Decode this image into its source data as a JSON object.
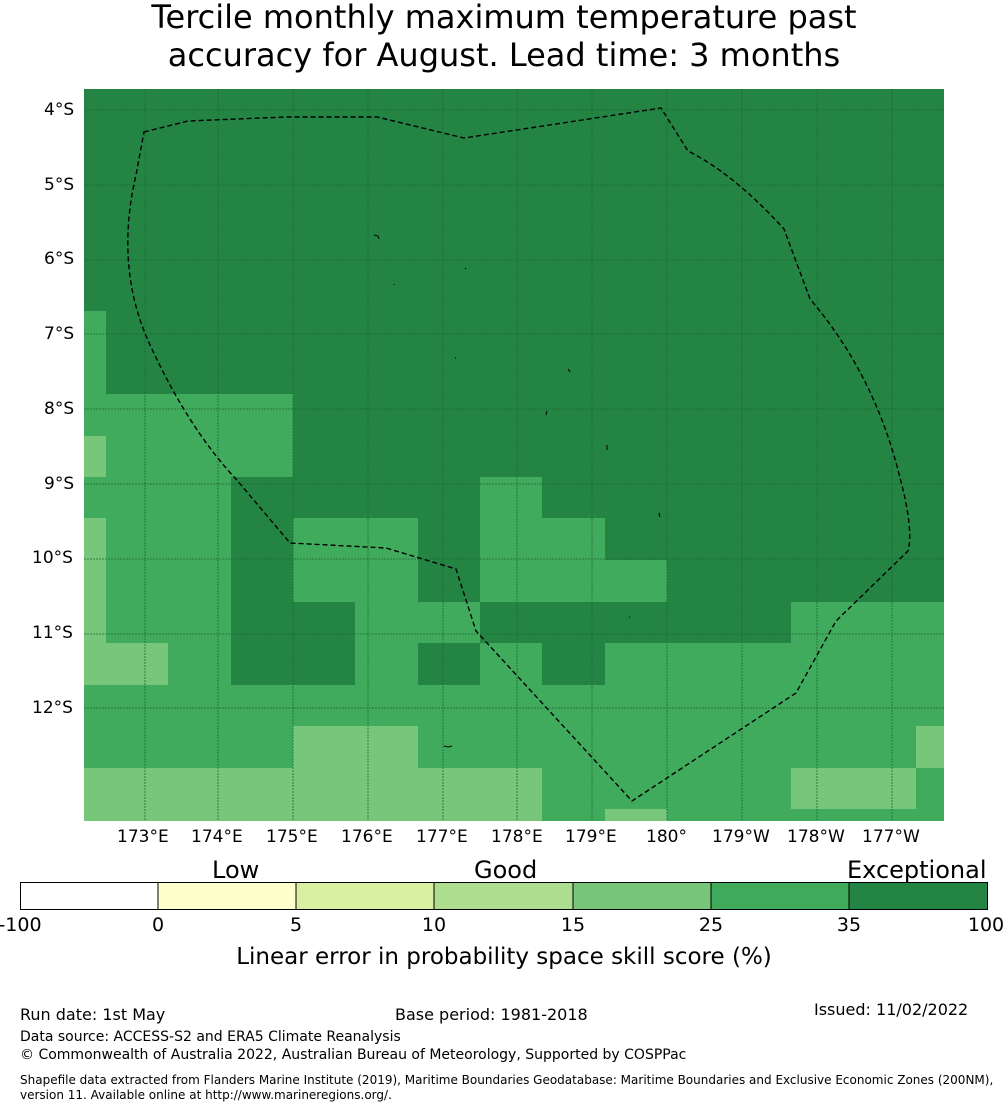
{
  "title_line1": "Tercile monthly maximum temperature past",
  "title_line2": "accuracy for August. Lead time: 3 months",
  "map": {
    "type": "gridded skill map",
    "lat_labels": [
      "4°S",
      "5°S",
      "6°S",
      "7°S",
      "8°S",
      "9°S",
      "10°S",
      "11°S",
      "12°S"
    ],
    "lon_labels": [
      "173°E",
      "174°E",
      "175°E",
      "176°E",
      "177°E",
      "178°E",
      "179°E",
      "180°",
      "179°W",
      "178°W",
      "177°W"
    ],
    "colors": {
      "c35": "#238443",
      "c25": "#41ab5d",
      "c15": "#78c679",
      "c10": "#addd8e",
      "c5": "#d9f0a3",
      "c0": "#ffffcc",
      "cneg": "#ffffff"
    },
    "grid_rows": [
      "CCCCCCCCCCCC",
      "CCCCCCCCCCCC",
      "CCCCCCCCCCCC",
      "CCCCCCCCCCCC",
      "CCCCCCCCCCCC",
      "BCCCCCCCCCCC",
      "BCCCCCCCCCCC",
      "BBBCCCCCCCCC",
      "ABBCCCCCCCCC",
      "BBBCCCBCCCCC",
      "BBBBCCBBCCCC",
      "BBBBBBBBCCCC",
      "BBBBCBBBCCCC",
      "AABBBBBBBBCC",
      "BBBBBBBBBBBB",
      "BBBBBBBBBBBA",
      "BBBBAABBBBBB",
      "AAABAAABBBAA"
    ],
    "boundary_style": "dashed"
  },
  "colorbar": {
    "category_labels": [
      "Low",
      "Good",
      "Exceptional"
    ],
    "ticks": [
      "-100",
      "0",
      "5",
      "10",
      "15",
      "25",
      "35",
      "100"
    ],
    "segment_colors": [
      "#ffffff",
      "#ffffcc",
      "#d9f0a3",
      "#addd8e",
      "#78c679",
      "#41ab5d",
      "#238443"
    ],
    "title": "Linear error in probability space skill score (%)"
  },
  "footer": {
    "run_date": "Run date: 1st May",
    "base_period": "Base period: 1981-2018",
    "issued": "Issued: 11/02/2022",
    "data_source": "Data source: ACCESS-S2 and ERA5 Climate Reanalysis",
    "copyright": "© Commonwealth of Australia 2022, Australian Bureau of Meteorology, Supported by COSPPac",
    "shapefile_line1": "Shapefile data extracted from Flanders Marine Institute (2019), Maritime Boundaries Geodatabase: Maritime Boundaries and Exclusive Economic Zones (200NM),",
    "shapefile_line2": "version 11. Available online at http://www.marineregions.org/."
  }
}
